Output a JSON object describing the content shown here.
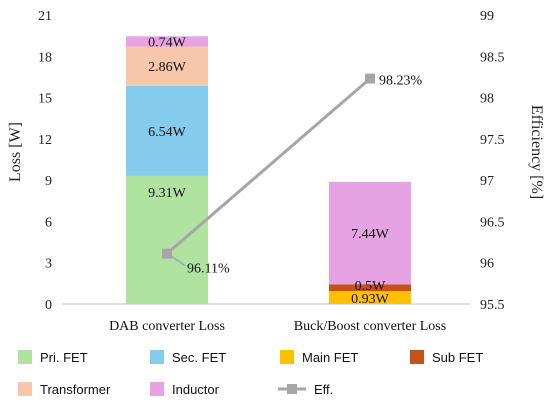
{
  "chart_data": {
    "type": "bar",
    "stacked": true,
    "categories": [
      "DAB converter Loss",
      "Buck/Boost converter Loss"
    ],
    "ylabel": "Loss [W]",
    "y2label": "Efficiency [%]",
    "ylim": [
      0,
      21
    ],
    "yticks": [
      "0",
      "3",
      "6",
      "9",
      "12",
      "15",
      "18",
      "21"
    ],
    "y2lim": [
      95.5,
      99
    ],
    "y2ticks": [
      "95.5",
      "96",
      "96.5",
      "97",
      "97.5",
      "98",
      "98.5",
      "99"
    ],
    "grid": false,
    "legend_position": "bottom",
    "series": [
      {
        "name": "Pri. FET",
        "color": "#b0e3a0",
        "values": [
          9.31,
          0
        ],
        "labels": [
          "9.31W",
          ""
        ]
      },
      {
        "name": "Sec. FET",
        "color": "#84cbed",
        "values": [
          6.54,
          0
        ],
        "labels": [
          "6.54W",
          ""
        ]
      },
      {
        "name": "Main FET",
        "color": "#ffc000",
        "values": [
          0,
          0.93
        ],
        "labels": [
          "",
          "0.93W"
        ]
      },
      {
        "name": "Sub FET",
        "color": "#c5521b",
        "values": [
          0,
          0.5
        ],
        "labels": [
          "",
          "0.5W"
        ]
      },
      {
        "name": "Transformer",
        "color": "#f8c6aa",
        "values": [
          2.86,
          0
        ],
        "labels": [
          "2.86W",
          ""
        ]
      },
      {
        "name": "Inductor",
        "color": "#e6a2e2",
        "values": [
          0.74,
          7.44
        ],
        "labels": [
          "0.74W",
          "7.44W"
        ]
      }
    ],
    "efficiency": {
      "name": "Eff.",
      "color": "#a6a6a6",
      "values": [
        96.11,
        98.23
      ],
      "labels": [
        "96.11%",
        "98.23%"
      ]
    }
  }
}
